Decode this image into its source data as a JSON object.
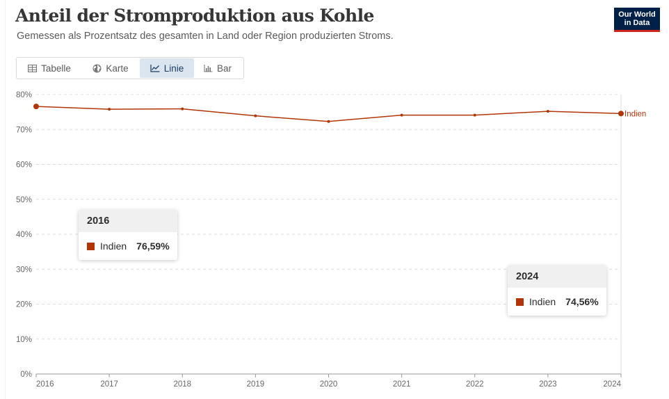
{
  "header": {
    "title": "Anteil der Stromproduktion aus Kohle",
    "subtitle": "Gemessen als Prozentsatz des gesamten in Land oder Region produzierten Stroms.",
    "logo_line1": "Our World",
    "logo_line2": "in Data"
  },
  "tabs": [
    {
      "label": "Tabelle",
      "icon": "table-icon",
      "active": false
    },
    {
      "label": "Karte",
      "icon": "globe-icon",
      "active": false
    },
    {
      "label": "Linie",
      "icon": "line-chart-icon",
      "active": true
    },
    {
      "label": "Bar",
      "icon": "bar-chart-icon",
      "active": false
    }
  ],
  "tooltips": [
    {
      "year": "2016",
      "entity": "Indien",
      "value": "76,59%"
    },
    {
      "year": "2024",
      "entity": "Indien",
      "value": "74,56%"
    }
  ],
  "colors": {
    "series": "#b13507",
    "grid": "#dddddd",
    "axis": "#999999",
    "active_tab": "#dbe5f0",
    "logo_bg": "#002147",
    "logo_accent": "#ce261e"
  },
  "chart_data": {
    "type": "line",
    "title": "Anteil der Stromproduktion aus Kohle",
    "subtitle": "Gemessen als Prozentsatz des gesamten in Land oder Region produzierten Stroms.",
    "x": [
      2016,
      2017,
      2018,
      2019,
      2020,
      2021,
      2022,
      2023,
      2024
    ],
    "series": [
      {
        "name": "Indien",
        "values": [
          76.59,
          75.8,
          75.9,
          73.9,
          72.3,
          74.1,
          74.1,
          75.2,
          74.56
        ]
      }
    ],
    "ylim": [
      0,
      80
    ],
    "yticks": [
      0,
      10,
      20,
      30,
      40,
      50,
      60,
      70,
      80
    ],
    "ytick_labels": [
      "0%",
      "10%",
      "20%",
      "30%",
      "40%",
      "50%",
      "60%",
      "70%",
      "80%"
    ],
    "xticks": [
      "2016",
      "2017",
      "2018",
      "2019",
      "2020",
      "2021",
      "2022",
      "2023",
      "2024"
    ],
    "grid": true,
    "legend": "inline-end"
  }
}
